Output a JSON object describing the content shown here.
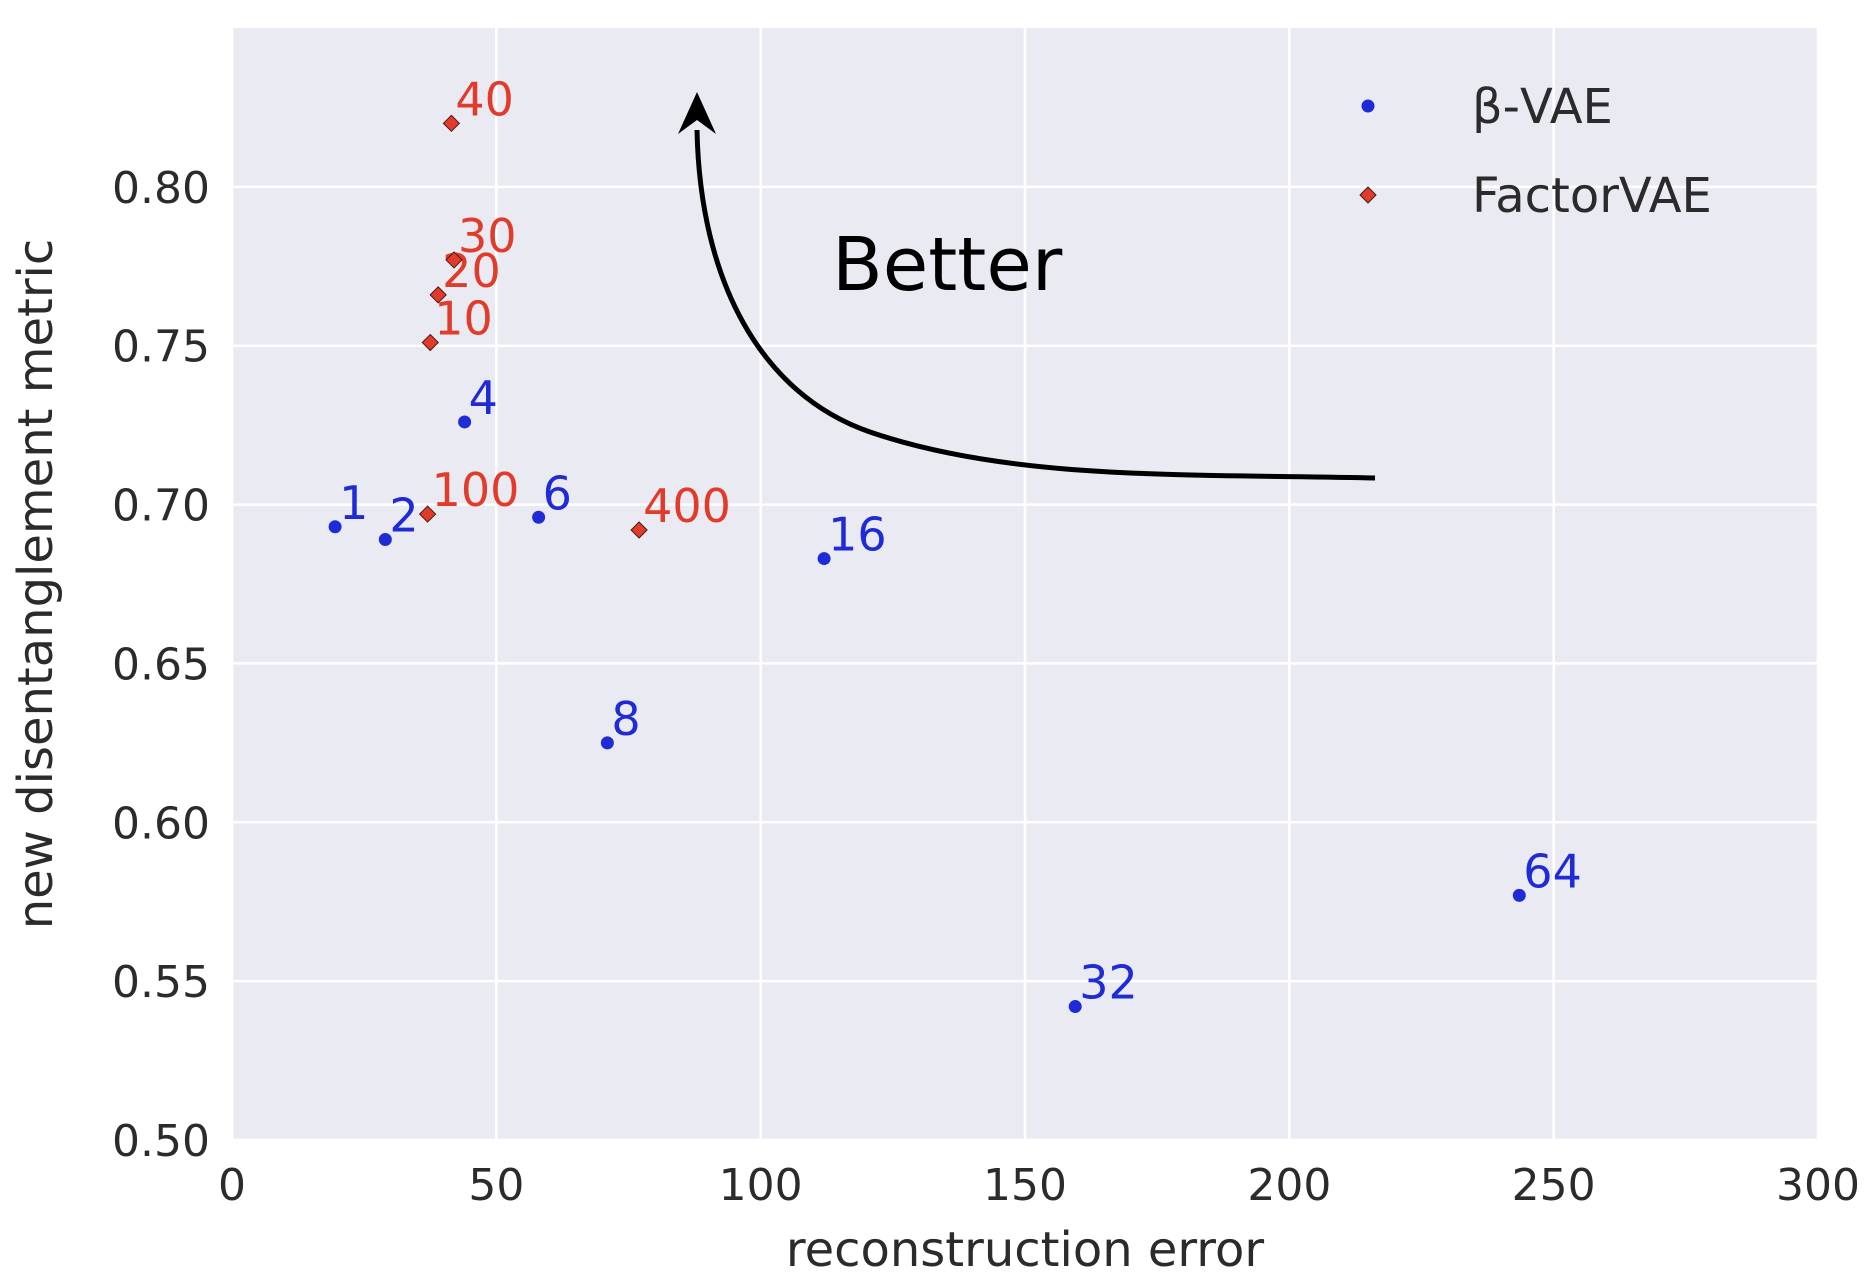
{
  "chart_data": {
    "type": "scatter",
    "xlabel": "reconstruction error",
    "ylabel": "new disentanglement metric",
    "xlim": [
      0,
      300
    ],
    "ylim": [
      0.5,
      0.85
    ],
    "xticks": [
      0,
      50,
      100,
      150,
      200,
      250,
      300
    ],
    "yticks": [
      0.5,
      0.55,
      0.6,
      0.65,
      0.7,
      0.75,
      0.8
    ],
    "ytick_labels": [
      "0.50",
      "0.55",
      "0.60",
      "0.65",
      "0.70",
      "0.75",
      "0.80"
    ],
    "grid": true,
    "legend_position": "top-right",
    "series": [
      {
        "name": "β-VAE",
        "color": "#1f2bd6",
        "marker": "circle",
        "points": [
          {
            "x": 19.5,
            "y": 0.693,
            "label": "1"
          },
          {
            "x": 29,
            "y": 0.689,
            "label": "2"
          },
          {
            "x": 44,
            "y": 0.726,
            "label": "4"
          },
          {
            "x": 58,
            "y": 0.696,
            "label": "6"
          },
          {
            "x": 71,
            "y": 0.625,
            "label": "8"
          },
          {
            "x": 112,
            "y": 0.683,
            "label": "16"
          },
          {
            "x": 159.5,
            "y": 0.542,
            "label": "32"
          },
          {
            "x": 243.5,
            "y": 0.577,
            "label": "64"
          }
        ]
      },
      {
        "name": "FactorVAE",
        "color": "#e03b2b",
        "marker": "diamond",
        "points": [
          {
            "x": 37.5,
            "y": 0.751,
            "label": "10"
          },
          {
            "x": 39,
            "y": 0.766,
            "label": "20"
          },
          {
            "x": 42,
            "y": 0.777,
            "label": "30"
          },
          {
            "x": 41.5,
            "y": 0.82,
            "label": "40"
          },
          {
            "x": 37,
            "y": 0.697,
            "label": "100"
          },
          {
            "x": 77,
            "y": 0.692,
            "label": "400"
          }
        ]
      }
    ],
    "annotation": {
      "text": "Better"
    }
  }
}
